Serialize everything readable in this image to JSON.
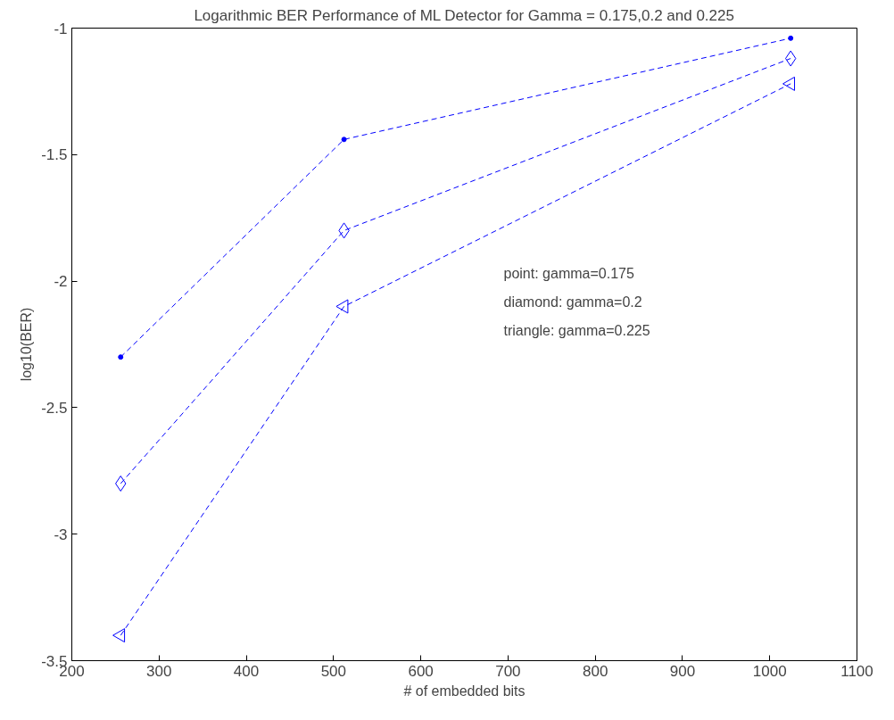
{
  "chart_data": {
    "type": "line",
    "title": "Logarithmic BER Performance of ML Detector for Gamma = 0.175,0.2 and 0.225",
    "xlabel": "# of embedded bits",
    "ylabel": "log10(BER)",
    "x": [
      256,
      512,
      1024
    ],
    "series": [
      {
        "color": "#0000ff",
        "marker": "circle",
        "values": [
          -2.3,
          -1.44,
          -1.04
        ]
      },
      {
        "color": "#0000ff",
        "marker": "diamond",
        "values": [
          -2.8,
          -1.8,
          -1.12
        ]
      },
      {
        "color": "#0000ff",
        "marker": "triangle",
        "values": [
          -3.4,
          -2.1,
          -1.22
        ]
      }
    ],
    "annotations": [
      "point: gamma=0.175",
      "diamond: gamma=0.2",
      "triangle: gamma=0.225"
    ],
    "xlim": [
      200,
      1100
    ],
    "ylim": [
      -3.5,
      -1
    ],
    "xticks": [
      200,
      300,
      400,
      500,
      600,
      700,
      800,
      900,
      1000,
      1100
    ],
    "yticks": [
      -3.5,
      -3,
      -2.5,
      -2,
      -1.5,
      -1
    ],
    "grid": false,
    "line_style": "dashed"
  }
}
